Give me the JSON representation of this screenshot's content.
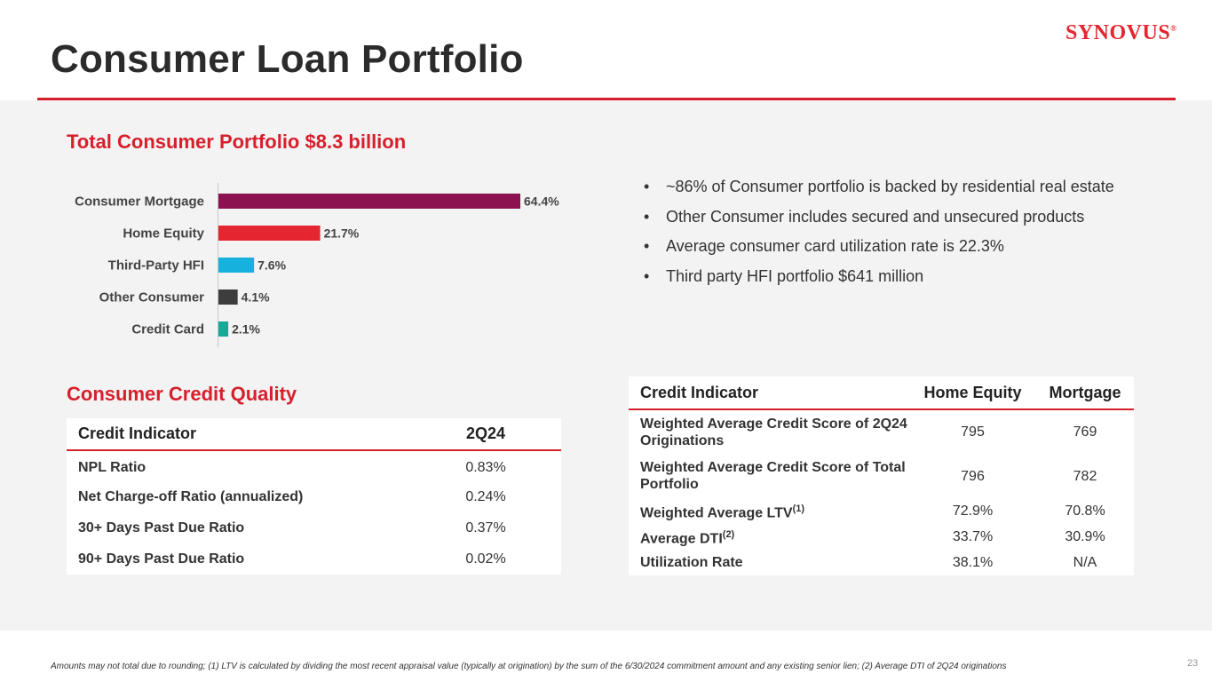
{
  "header": {
    "title": "Consumer Loan Portfolio",
    "logo_text": "SYNOVUS",
    "logo_mark": "®",
    "accent_color": "#d6202c"
  },
  "portfolio": {
    "heading": "Total Consumer Portfolio $8.3 billion"
  },
  "chart_data": {
    "type": "bar",
    "orientation": "horizontal",
    "title": "Total Consumer Portfolio $8.3 billion",
    "categories": [
      "Consumer Mortgage",
      "Home Equity",
      "Third-Party HFI",
      "Other Consumer",
      "Credit Card"
    ],
    "values": [
      64.4,
      21.7,
      7.6,
      4.1,
      2.1
    ],
    "value_labels": [
      "64.4%",
      "21.7%",
      "7.6%",
      "4.1%",
      "2.1%"
    ],
    "colors": [
      "#8b1150",
      "#e3262f",
      "#16b1dd",
      "#3d3d3d",
      "#17a997"
    ],
    "xlim": [
      0,
      64.4
    ],
    "unit": "%",
    "grid": false,
    "legend": "none"
  },
  "bullets": [
    "~86% of Consumer portfolio is backed by residential real estate",
    "Other Consumer includes secured and unsecured products",
    "Average consumer card utilization rate is 22.3%",
    "Third party HFI portfolio $641 million"
  ],
  "credit_quality": {
    "heading": "Consumer Credit Quality",
    "col_indicator": "Credit Indicator",
    "col_period": "2Q24",
    "rows": [
      {
        "label": "NPL Ratio",
        "value": "0.83%"
      },
      {
        "label": "Net Charge-off Ratio (annualized)",
        "value": "0.24%"
      },
      {
        "label": "30+ Days Past Due Ratio",
        "value": "0.37%"
      },
      {
        "label": "90+ Days Past Due Ratio",
        "value": "0.02%"
      }
    ]
  },
  "credit_indicators": {
    "col_indicator": "Credit Indicator",
    "col_home_equity": "Home Equity",
    "col_mortgage": "Mortgage",
    "rows": [
      {
        "label": "Weighted Average Credit Score of 2Q24 Originations",
        "note": "",
        "home_equity": "795",
        "mortgage": "769"
      },
      {
        "label": "Weighted Average Credit Score of Total Portfolio",
        "note": "",
        "home_equity": "796",
        "mortgage": "782"
      },
      {
        "label": "Weighted Average LTV",
        "note": "(1)",
        "home_equity": "72.9%",
        "mortgage": "70.8%"
      },
      {
        "label": "Average DTI",
        "note": "(2)",
        "home_equity": "33.7%",
        "mortgage": "30.9%"
      },
      {
        "label": "Utilization Rate",
        "note": "",
        "home_equity": "38.1%",
        "mortgage": "N/A"
      }
    ]
  },
  "footer": {
    "footnote": "Amounts may not total due to rounding; (1) LTV is calculated by dividing the most recent appraisal value (typically at origination) by the sum of the 6/30/2024 commitment amount and any existing senior lien; (2) Average DTI of 2Q24 originations",
    "page_number": "23"
  }
}
